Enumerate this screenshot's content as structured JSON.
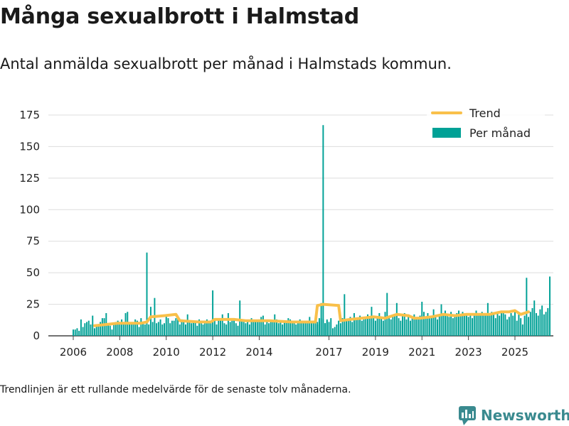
{
  "header": {
    "title": "Många sexualbrott i Halmstad",
    "subtitle": "Antal anmälda sexualbrott per månad i Halmstads kommun."
  },
  "footer": {
    "note": "Trendlinjen är ett rullande medelvärde för de senaste tolv månaderna.",
    "brand": "Newsworthy"
  },
  "colors": {
    "bar": "#00a196",
    "trend": "#f9c04a",
    "grid": "#dddddd",
    "brand": "#3a8a8f"
  },
  "chart_data": {
    "type": "bar",
    "title": "Många sexualbrott i Halmstad",
    "subtitle": "Antal anmälda sexualbrott per månad i Halmstads kommun.",
    "xlabel": "",
    "ylabel": "",
    "ylim": [
      0,
      175
    ],
    "yticks": [
      0,
      25,
      50,
      75,
      100,
      125,
      150,
      175
    ],
    "xticks": [
      "2006",
      "2008",
      "2010",
      "2012",
      "2014",
      "2017",
      "2019",
      "2021",
      "2023",
      "2025"
    ],
    "x_start": "2006-01",
    "x_end": "2025-08",
    "grid": true,
    "legend_position": "top-right",
    "legend": [
      "Trend",
      "Per månad"
    ],
    "series": [
      {
        "name": "Per månad",
        "type": "bar",
        "blocks": [
          {
            "start": "2006-01",
            "values": [
              5,
              5,
              6,
              4,
              13,
              7,
              10,
              11,
              12,
              9,
              16,
              6,
              8,
              9,
              11,
              14,
              14,
              18,
              9,
              8,
              5,
              10,
              11,
              12,
              9,
              13,
              11,
              18,
              19,
              9,
              10,
              9,
              13,
              12,
              7,
              14,
              10,
              9,
              66,
              9,
              23,
              11,
              30,
              10,
              11,
              13,
              9,
              10,
              16,
              14,
              10,
              12,
              12,
              14,
              16,
              9,
              13,
              11,
              9,
              17,
              12,
              10,
              11,
              12,
              8,
              13,
              10,
              9,
              12,
              13,
              11,
              10,
              36,
              14,
              9,
              12,
              13,
              17,
              10,
              9,
              18,
              11,
              12,
              13,
              10,
              8,
              28,
              13,
              11,
              10,
              12,
              9,
              14,
              11,
              12,
              12,
              13,
              15,
              16,
              9,
              12,
              10,
              12,
              11,
              17,
              13,
              10,
              11
            ]
          },
          {
            "start": "2015-01",
            "values": [
              9,
              11,
              12,
              14,
              13,
              10,
              12,
              9,
              11,
              13,
              12,
              10,
              11,
              12,
              15,
              10,
              12,
              13,
              9,
              11,
              14,
              13,
              10,
              12
            ]
          },
          {
            "start": "2016-07",
            "values": [
              11,
              14,
              26,
              167,
              10,
              13,
              11,
              14,
              6,
              7,
              9,
              12,
              10,
              14,
              33,
              13,
              12,
              15,
              11,
              18,
              13,
              14,
              16,
              12,
              13,
              15,
              17,
              14,
              23,
              16,
              12,
              15,
              18,
              14,
              12,
              19,
              34,
              16,
              13,
              15,
              17,
              26,
              14,
              12,
              16,
              18,
              13,
              17,
              12,
              15,
              17,
              14,
              13,
              16,
              27,
              19,
              15,
              18,
              14,
              16,
              21,
              16,
              13,
              17,
              25,
              17,
              20,
              16,
              15,
              19,
              14,
              17,
              18,
              20,
              17,
              19,
              16,
              17,
              15,
              18,
              14,
              16,
              20,
              18,
              17,
              19,
              16,
              18,
              26,
              16,
              19,
              17,
              14,
              18,
              16,
              20,
              19,
              17,
              13,
              15,
              18,
              16,
              20,
              12,
              17,
              14,
              9,
              16,
              46,
              15,
              19,
              22,
              28,
              18,
              16,
              21,
              24,
              17,
              19,
              22,
              47
            ]
          }
        ]
      },
      {
        "name": "Trend",
        "type": "line",
        "points": [
          [
            "2006-12",
            8
          ],
          [
            "2007-06",
            9
          ],
          [
            "2007-12",
            10
          ],
          [
            "2008-06",
            10
          ],
          [
            "2008-12",
            10
          ],
          [
            "2009-03",
            11
          ],
          [
            "2009-05",
            15
          ],
          [
            "2009-12",
            16
          ],
          [
            "2010-06",
            17
          ],
          [
            "2010-08",
            12
          ],
          [
            "2011-06",
            11
          ],
          [
            "2011-12",
            11
          ],
          [
            "2012-02",
            13
          ],
          [
            "2012-12",
            13
          ],
          [
            "2013-06",
            12
          ],
          [
            "2013-12",
            12
          ],
          [
            "2014-06",
            12
          ],
          [
            "2015-06",
            11
          ],
          [
            "2016-06",
            11
          ],
          [
            "2016-07",
            24
          ],
          [
            "2016-10",
            25
          ],
          [
            "2017-06",
            24
          ],
          [
            "2017-07",
            12
          ],
          [
            "2017-12",
            13
          ],
          [
            "2018-06",
            14
          ],
          [
            "2018-12",
            15
          ],
          [
            "2019-06",
            14
          ],
          [
            "2019-12",
            17
          ],
          [
            "2020-06",
            16
          ],
          [
            "2020-09",
            14
          ],
          [
            "2020-12",
            14
          ],
          [
            "2021-06",
            15
          ],
          [
            "2021-12",
            17
          ],
          [
            "2022-06",
            16
          ],
          [
            "2022-12",
            17
          ],
          [
            "2023-06",
            17
          ],
          [
            "2023-12",
            17
          ],
          [
            "2024-06",
            19
          ],
          [
            "2024-10",
            19
          ],
          [
            "2025-01",
            20
          ],
          [
            "2025-04",
            17
          ],
          [
            "2025-08",
            19
          ]
        ]
      }
    ]
  }
}
